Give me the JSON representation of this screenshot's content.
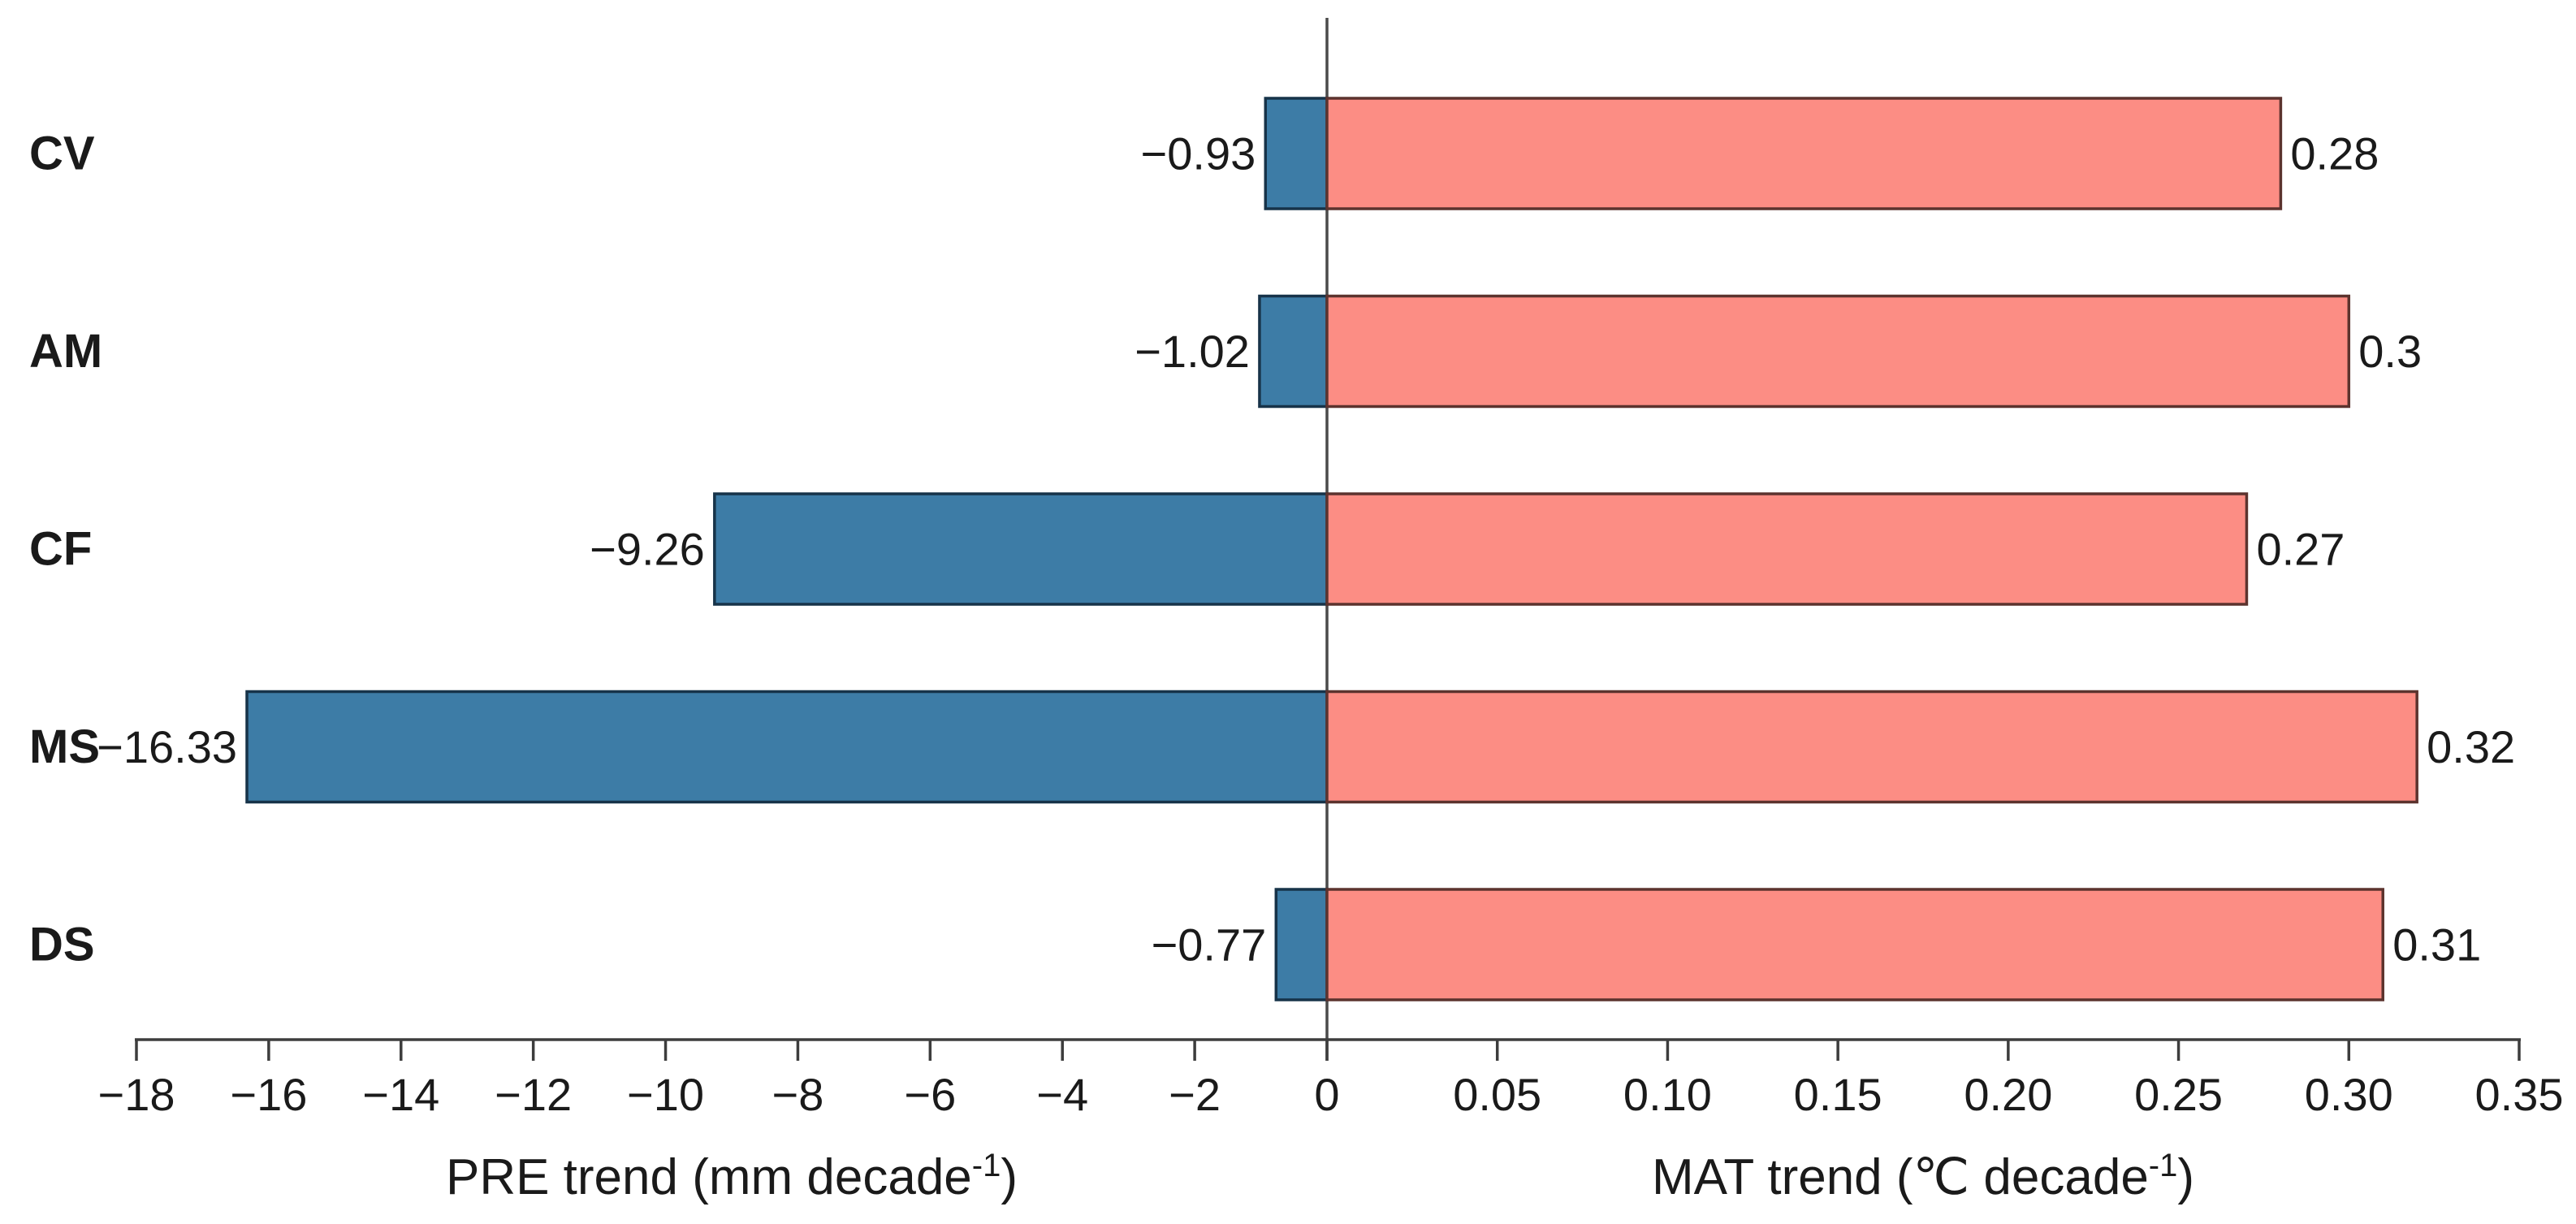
{
  "chart_data": {
    "type": "bar",
    "subtype": "diverging-horizontal-two-axes",
    "categories": [
      "CV",
      "AM",
      "CF",
      "MS",
      "DS"
    ],
    "series": [
      {
        "name": "PRE trend",
        "axis": "left",
        "values": [
          -0.93,
          -1.02,
          -9.26,
          -16.33,
          -0.77
        ],
        "value_labels": [
          "−0.93",
          "−1.02",
          "−9.26",
          "−16.33",
          "−0.77"
        ],
        "fill": "#3d7ca6",
        "stroke": "#173349"
      },
      {
        "name": "MAT trend",
        "axis": "right",
        "values": [
          0.28,
          0.3,
          0.27,
          0.32,
          0.31
        ],
        "value_labels": [
          "0.28",
          "0.3",
          "0.27",
          "0.32",
          "0.31"
        ],
        "fill": "#fc8d84",
        "stroke": "#5c332e"
      }
    ],
    "left_axis": {
      "title_parts": [
        "PRE trend (mm decade",
        "-1",
        ")"
      ],
      "range": [
        -18,
        0
      ],
      "ticks": [
        -18,
        -16,
        -14,
        -12,
        -10,
        -8,
        -6,
        -4,
        -2
      ],
      "tick_labels": [
        "−18",
        "−16",
        "−14",
        "−12",
        "−10",
        "−8",
        "−6",
        "−4",
        "−2"
      ]
    },
    "right_axis": {
      "title_parts": [
        "MAT trend (℃ decade",
        "-1",
        ")"
      ],
      "range": [
        0,
        0.35
      ],
      "ticks": [
        0.05,
        0.1,
        0.15,
        0.2,
        0.25,
        0.3,
        0.35
      ],
      "tick_labels": [
        "0.05",
        "0.10",
        "0.15",
        "0.20",
        "0.25",
        "0.30",
        "0.35"
      ]
    },
    "zero_tick_label": "0",
    "grid": false,
    "legend": false,
    "colors": {
      "pre_bar_fill": "#3d7ca6",
      "pre_bar_stroke": "#173349",
      "mat_bar_fill": "#fc8d84",
      "mat_bar_stroke": "#5c332e",
      "axis_line": "#3d3d3d",
      "zero_line": "#4a4a4a",
      "text": "#1a1a1a",
      "background": "#ffffff"
    }
  }
}
